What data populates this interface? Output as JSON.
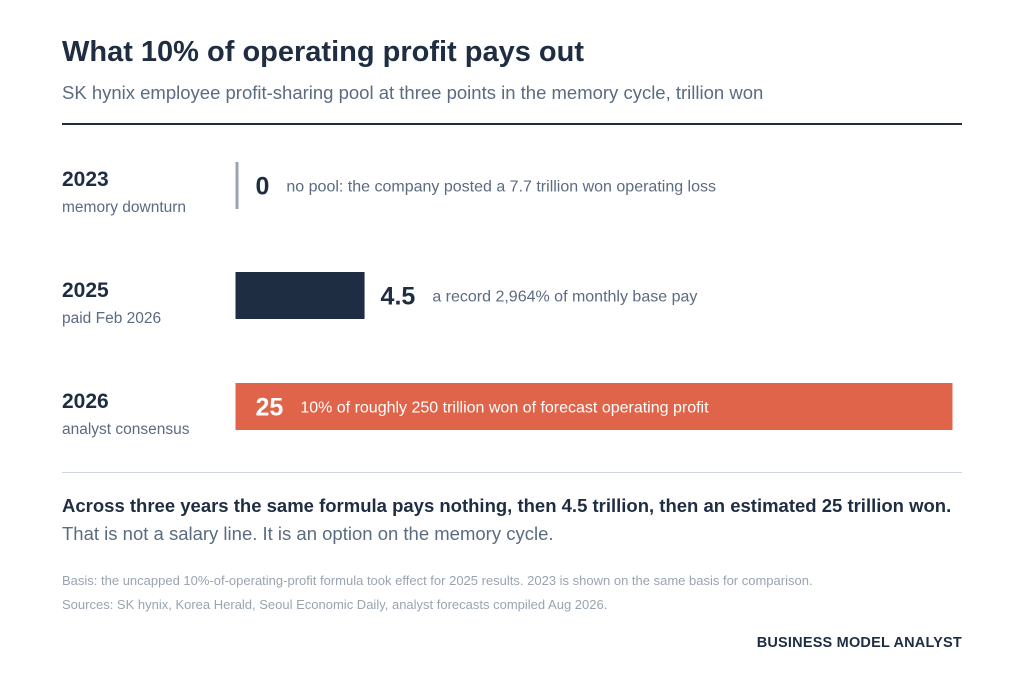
{
  "header": {
    "title": "What 10% of operating profit pays out",
    "subtitle": "SK hynix employee profit-sharing pool at three points in the memory cycle, trillion won"
  },
  "colors": {
    "ink": "#1f2d42",
    "muted": "#5b6b80",
    "zero_line": "#9aa4b0",
    "bar_2025": "#1f2d42",
    "bar_2026": "#e0644a",
    "on_accent_text": "#ffffff"
  },
  "chart_data": {
    "type": "bar",
    "orientation": "horizontal",
    "unit": "trillion won",
    "categories": [
      "2023",
      "2025",
      "2026"
    ],
    "category_sublabels": [
      "memory downturn",
      "paid Feb 2026",
      "analyst consensus"
    ],
    "values": [
      0,
      4.5,
      25
    ],
    "value_labels": [
      "0",
      "4.5",
      "25"
    ],
    "annotations": [
      "no pool: the company posted a 7.7 trillion won operating loss",
      "a record 2,964% of monthly base pay",
      "10% of roughly 250 trillion won of forecast operating profit"
    ],
    "xlim": [
      0,
      25
    ],
    "grid": false,
    "legend": "none"
  },
  "takeaway": {
    "headline": "Across three years the same formula pays nothing, then 4.5 trillion, then an estimated 25 trillion won.",
    "subline": "That is not a salary line. It is an option on the memory cycle."
  },
  "notes": {
    "basis": "Basis: the uncapped 10%-of-operating-profit formula took effect for 2025 results. 2023 is shown on the same basis for comparison.",
    "sources": "Sources: SK hynix, Korea Herald, Seoul Economic Daily, analyst forecasts compiled Aug 2026."
  },
  "brand": "BUSINESS MODEL ANALYST"
}
